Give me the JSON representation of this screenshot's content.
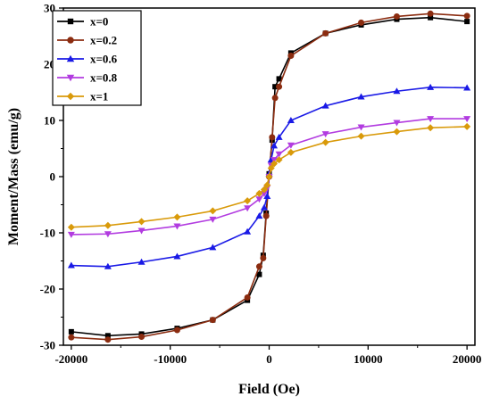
{
  "chart_data": {
    "type": "line",
    "title": "",
    "xlabel": "Field (Oe)",
    "ylabel": "Moment/Mass (emu/g)",
    "xlim": [
      -20800,
      20800
    ],
    "ylim": [
      -30,
      30
    ],
    "x_ticks": [
      -20000,
      -10000,
      0,
      10000,
      20000
    ],
    "x_tick_labels": [
      "-20000",
      "-10000",
      "0",
      "10000",
      "20000"
    ],
    "y_ticks": [
      -30,
      -20,
      -10,
      0,
      10,
      20,
      30
    ],
    "y_tick_labels": [
      "-30",
      "-20",
      "-10",
      "0",
      "10",
      "20",
      "30"
    ],
    "grid": false,
    "legend_position": "top-left",
    "series": [
      {
        "name": "x=0",
        "color": "#000000",
        "marker": "square",
        "points": [
          [
            -20000,
            -27.6
          ],
          [
            -16300,
            -28.3
          ],
          [
            -12900,
            -28.0
          ],
          [
            -9300,
            -27.0
          ],
          [
            -5700,
            -25.5
          ],
          [
            -2200,
            -22.0
          ],
          [
            -1000,
            -17.4
          ],
          [
            -600,
            -14.0
          ],
          [
            -300,
            -6.5
          ],
          [
            0,
            0.5
          ],
          [
            300,
            6.5
          ],
          [
            600,
            16.0
          ],
          [
            1000,
            17.4
          ],
          [
            2200,
            22.0
          ],
          [
            5700,
            25.5
          ],
          [
            9300,
            27.0
          ],
          [
            12900,
            28.0
          ],
          [
            16300,
            28.3
          ],
          [
            20000,
            27.6
          ]
        ]
      },
      {
        "name": "x=0.2",
        "color": "#8b2c10",
        "marker": "circle",
        "points": [
          [
            -20000,
            -28.6
          ],
          [
            -16300,
            -29.0
          ],
          [
            -12900,
            -28.5
          ],
          [
            -9300,
            -27.3
          ],
          [
            -5700,
            -25.5
          ],
          [
            -2200,
            -21.5
          ],
          [
            -1000,
            -16.0
          ],
          [
            -600,
            -14.5
          ],
          [
            -300,
            -7.0
          ],
          [
            0,
            0.0
          ],
          [
            300,
            7.0
          ],
          [
            600,
            14.0
          ],
          [
            1000,
            16.0
          ],
          [
            2200,
            21.5
          ],
          [
            5700,
            25.5
          ],
          [
            9300,
            27.4
          ],
          [
            12900,
            28.5
          ],
          [
            16300,
            29.0
          ],
          [
            20000,
            28.6
          ]
        ]
      },
      {
        "name": "x=0.6",
        "color": "#1a1ae6",
        "marker": "triangle-up",
        "points": [
          [
            -20000,
            -15.8
          ],
          [
            -16300,
            -16.0
          ],
          [
            -12900,
            -15.2
          ],
          [
            -9300,
            -14.2
          ],
          [
            -5700,
            -12.6
          ],
          [
            -2200,
            -9.8
          ],
          [
            -1000,
            -7.0
          ],
          [
            -500,
            -5.5
          ],
          [
            -200,
            -3.5
          ],
          [
            0,
            0.5
          ],
          [
            200,
            3.0
          ],
          [
            500,
            5.5
          ],
          [
            1000,
            7.0
          ],
          [
            2200,
            10.0
          ],
          [
            5700,
            12.6
          ],
          [
            9300,
            14.2
          ],
          [
            12900,
            15.2
          ],
          [
            16300,
            15.9
          ],
          [
            20000,
            15.8
          ]
        ]
      },
      {
        "name": "x=0.8",
        "color": "#b23ce0",
        "marker": "triangle-down",
        "points": [
          [
            -20000,
            -10.3
          ],
          [
            -16300,
            -10.2
          ],
          [
            -12900,
            -9.6
          ],
          [
            -9300,
            -8.8
          ],
          [
            -5700,
            -7.6
          ],
          [
            -2200,
            -5.6
          ],
          [
            -1000,
            -4.0
          ],
          [
            -500,
            -3.0
          ],
          [
            -200,
            -2.0
          ],
          [
            0,
            0.0
          ],
          [
            200,
            2.0
          ],
          [
            500,
            3.0
          ],
          [
            1000,
            4.0
          ],
          [
            2200,
            5.6
          ],
          [
            5700,
            7.6
          ],
          [
            9300,
            8.8
          ],
          [
            12900,
            9.6
          ],
          [
            16300,
            10.3
          ],
          [
            20000,
            10.3
          ]
        ]
      },
      {
        "name": "x=1",
        "color": "#d99a0a",
        "marker": "diamond",
        "points": [
          [
            -20000,
            -9.0
          ],
          [
            -16300,
            -8.7
          ],
          [
            -12900,
            -8.0
          ],
          [
            -9300,
            -7.2
          ],
          [
            -5700,
            -6.1
          ],
          [
            -2200,
            -4.3
          ],
          [
            -1000,
            -3.0
          ],
          [
            -500,
            -2.3
          ],
          [
            -200,
            -1.5
          ],
          [
            0,
            0.0
          ],
          [
            200,
            1.5
          ],
          [
            500,
            2.3
          ],
          [
            1000,
            3.0
          ],
          [
            2200,
            4.3
          ],
          [
            5700,
            6.1
          ],
          [
            9300,
            7.2
          ],
          [
            12900,
            8.0
          ],
          [
            16300,
            8.7
          ],
          [
            20000,
            8.9
          ]
        ]
      }
    ]
  }
}
